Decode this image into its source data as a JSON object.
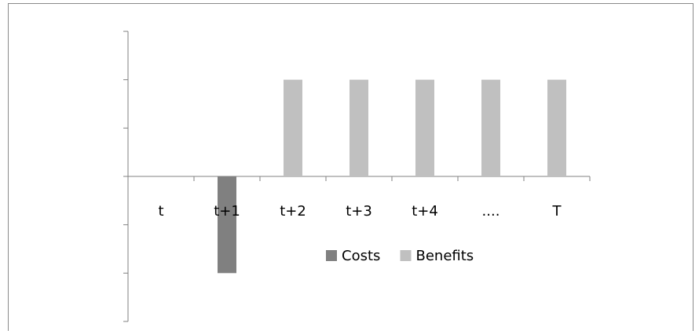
{
  "chart_data": {
    "type": "bar",
    "categories": [
      "t",
      "t+1",
      "t+2",
      "t+3",
      "t+4",
      "....",
      "T"
    ],
    "series": [
      {
        "name": "Costs",
        "values": [
          0,
          -2,
          0,
          0,
          0,
          0,
          0
        ],
        "color": "#808080"
      },
      {
        "name": "Benefits",
        "values": [
          0,
          0,
          2,
          2,
          2,
          2,
          2
        ],
        "color": "#c0c0c0"
      }
    ],
    "ylim": [
      -3,
      3
    ],
    "y_tick_count": 6,
    "grid": false,
    "legend": "bottom"
  }
}
